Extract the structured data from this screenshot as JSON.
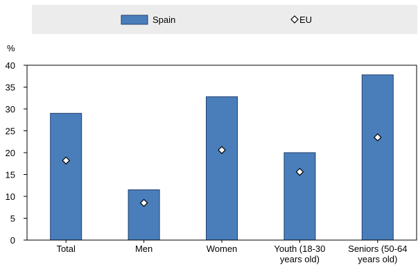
{
  "chart_data": {
    "type": "bar",
    "y_unit": "%",
    "ylim": [
      0,
      40
    ],
    "yticks": [
      0,
      5,
      10,
      15,
      20,
      25,
      30,
      35,
      40
    ],
    "grid": false,
    "legend_position": "top",
    "categories": [
      [
        "Total"
      ],
      [
        "Men"
      ],
      [
        "Women"
      ],
      [
        "Youth (18-30",
        "years old)"
      ],
      [
        "Seniors (50-64",
        "years old)"
      ]
    ],
    "series": [
      {
        "name": "Spain",
        "kind": "bar",
        "color": "#4a7ebb",
        "values": [
          29,
          11.5,
          32.8,
          20,
          37.8
        ]
      },
      {
        "name": "EU",
        "kind": "marker",
        "marker": "diamond",
        "color": "#ffffff",
        "values": [
          18.2,
          8.5,
          20.6,
          15.6,
          23.5
        ]
      }
    ],
    "colors": {
      "legend_band": "#ececec",
      "bar_edge": "#1f3f6b",
      "axis": "#000000"
    }
  }
}
